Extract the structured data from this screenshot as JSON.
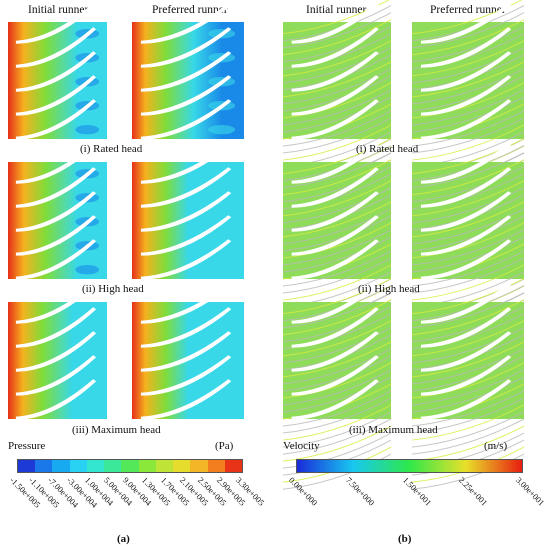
{
  "columns": {
    "left_initial": "Initial runner",
    "left_preferred": "Preferred runner",
    "right_initial": "Initial runner",
    "right_preferred": "Preferred runner"
  },
  "captions": {
    "rated": "(i) Rated head",
    "high": "(ii) High head",
    "max": "(iii) Maximum head"
  },
  "pressure_legend": {
    "title": "Pressure",
    "unit": "(Pa)",
    "ticks": [
      "-1.50e+005",
      "-1.10e+005",
      "-7.00e+004",
      "-3.00e+004",
      "1.00e+004",
      "5.00e+004",
      "9.00e+004",
      "1.30e+005",
      "1.70e+005",
      "2.10e+005",
      "2.50e+005",
      "2.90e+005",
      "3.30e+005"
    ],
    "colors": [
      "#1e3ad6",
      "#1a78ea",
      "#17aaf0",
      "#29d2f2",
      "#33e6d0",
      "#3be89a",
      "#52e85a",
      "#8ae83a",
      "#bfe438",
      "#e6dc2e",
      "#f2b626",
      "#f27e1e",
      "#e83318"
    ]
  },
  "velocity_legend": {
    "title": "Velocity",
    "unit": "(m/s)",
    "ticks": [
      "0.00e+000",
      "7.50e+000",
      "1.50e+001",
      "2.25e+001",
      "3.00e+001"
    ],
    "gradient_colors": [
      "#1a2ad8",
      "#18c8f0",
      "#2ee84a",
      "#e8e02a",
      "#e81e10"
    ]
  },
  "labels": {
    "a": "(a)",
    "b": "(b)"
  },
  "panel_colors": {
    "pressure_high": "#e6301a",
    "pressure_mid": "#f5b21e",
    "pressure_green": "#7fdc3a",
    "pressure_cyan": "#38d8e8",
    "pressure_blue": "#1a8ae8",
    "velocity_base": "#8fdc5a",
    "velocity_line": "#b9b9b9",
    "velocity_bright": "#d8ec3a",
    "blade": "#ffffff"
  }
}
